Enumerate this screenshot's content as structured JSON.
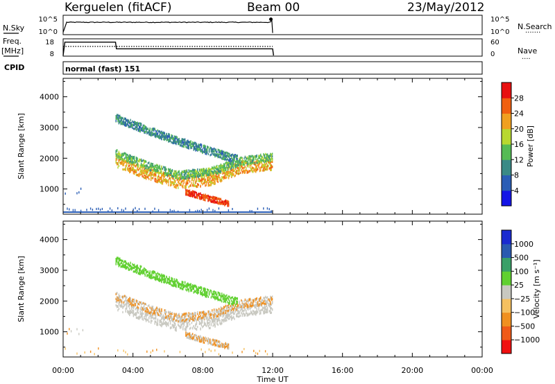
{
  "header": {
    "station": "Kerguelen (fitACF)",
    "beam": "Beam 00",
    "date": "23/May/2012"
  },
  "left_labels": {
    "nsky": "N.Sky",
    "freq_top": "Freq.",
    "freq_unit": "[MHz]",
    "cpid": "CPID"
  },
  "right_labels": {
    "nsearch": "N.Search",
    "nave": "Nave"
  },
  "cpid_text": "normal (fast) 151",
  "noise_ticks_left": [
    "10^5",
    "10^0"
  ],
  "noise_ticks_right": [
    "10^5",
    "10^0"
  ],
  "freq_ticks_left": [
    "18",
    "8"
  ],
  "freq_ticks_right": [
    "60",
    "0"
  ],
  "colors": {
    "power_scale": [
      "#1414e6",
      "#2a5db5",
      "#3a8a86",
      "#55bb55",
      "#b8d830",
      "#f0a020",
      "#f06010",
      "#e81010"
    ],
    "velocity_scale": [
      "#f01010",
      "#ef5a18",
      "#f09020",
      "#f5c060",
      "#c8c8c0",
      "#60d030",
      "#3aa068",
      "#2a5ab0",
      "#1a2ad0"
    ]
  },
  "chart_data": [
    {
      "type": "heatmap",
      "panel": "power",
      "xlabel": "Time UT",
      "ylabel": "Slant Range [km]",
      "xlim": [
        0,
        24
      ],
      "ylim": [
        180,
        4600
      ],
      "x_ticks": [
        "00:00",
        "04:00",
        "08:00",
        "12:00",
        "16:00",
        "20:00",
        "00:00"
      ],
      "y_ticks": [
        "1000",
        "2000",
        "3000",
        "4000"
      ],
      "colorbar_label": "Power [dB]",
      "colorbar_ticks": [
        "4",
        "8",
        "12",
        "16",
        "20",
        "24",
        "28"
      ],
      "data_extent_hours": [
        0,
        12
      ],
      "bands": [
        {
          "t0": 3.0,
          "t1": 12.0,
          "r": [
            1900,
            1500,
            1200,
            1300,
            1700,
            1800
          ],
          "level": 22
        },
        {
          "t0": 3.0,
          "t1": 12.0,
          "r": [
            2150,
            1750,
            1450,
            1550,
            1900,
            2050
          ],
          "level": 14
        },
        {
          "t0": 3.0,
          "t1": 10.0,
          "r": [
            3300,
            2800,
            2350,
            1950
          ],
          "level": 10
        },
        {
          "t0": 7.0,
          "t1": 9.5,
          "r": [
            900,
            700,
            520
          ],
          "level": 28
        }
      ]
    },
    {
      "type": "heatmap",
      "panel": "velocity",
      "xlabel": "Time UT",
      "ylabel": "Slant Range [km]",
      "xlim": [
        0,
        24
      ],
      "ylim": [
        180,
        4600
      ],
      "x_ticks": [
        "00:00",
        "04:00",
        "08:00",
        "12:00",
        "16:00",
        "20:00",
        "00:00"
      ],
      "y_ticks": [
        "1000",
        "2000",
        "3000",
        "4000"
      ],
      "colorbar_label": "Velocity [m s⁻¹]",
      "colorbar_ticks": [
        "1000",
        "500",
        "100",
        "25",
        "−25",
        "−100",
        "−500",
        "−1000"
      ],
      "data_extent_hours": [
        0,
        12
      ]
    },
    {
      "type": "line",
      "panel": "noise",
      "series": [
        {
          "name": "N.Sky",
          "x": [
            0,
            0.2,
            3,
            6,
            9,
            11.5,
            11.9,
            12
          ],
          "y": [
            0.5,
            3.6,
            3.6,
            3.6,
            3.7,
            3.7,
            4.6,
            0.2
          ]
        }
      ]
    },
    {
      "type": "line",
      "panel": "frequency",
      "series": [
        {
          "name": "Freq.",
          "x": [
            0,
            0.1,
            3,
            3.05,
            12,
            12.05
          ],
          "y": [
            8,
            16,
            16,
            12,
            12,
            8
          ]
        },
        {
          "name": "Nave",
          "x": [
            0,
            12
          ],
          "y": [
            48,
            48
          ]
        }
      ]
    }
  ]
}
